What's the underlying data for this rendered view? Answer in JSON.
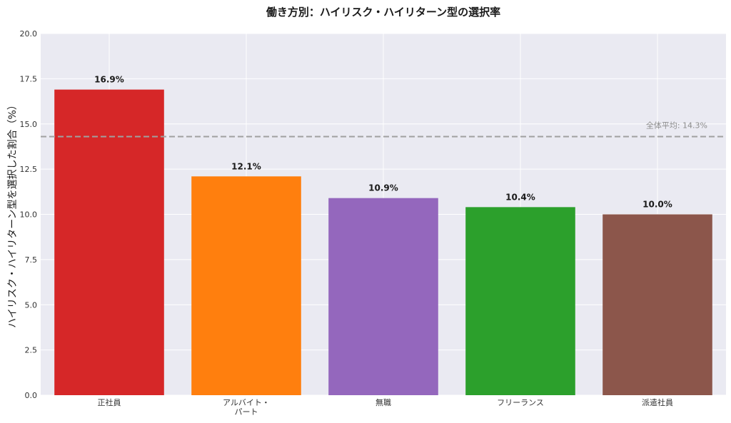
{
  "chart_data": {
    "type": "bar",
    "title": "働き方別：ハイリスク・ハイリターン型の選択率",
    "xlabel": "",
    "ylabel": "ハイリスク・ハイリターン型を選択した割合（%）",
    "categories": [
      "正社員",
      "アルバイト・\nパート",
      "無職",
      "フリーランス",
      "派遣社員"
    ],
    "values": [
      16.9,
      12.1,
      10.9,
      10.4,
      10.0
    ],
    "data_labels": [
      "16.9%",
      "12.1%",
      "10.9%",
      "10.4%",
      "10.0%"
    ],
    "colors": [
      "#d62728",
      "#ff7f0e",
      "#9467bd",
      "#2ca02c",
      "#8c564b"
    ],
    "ylim": [
      0,
      20
    ],
    "yticks": [
      "0.0",
      "2.5",
      "5.0",
      "7.5",
      "10.0",
      "12.5",
      "15.0",
      "17.5",
      "20.0"
    ],
    "grid": true,
    "reference_line": {
      "value": 14.3,
      "label": "全体平均: 14.3%",
      "color": "#a0a0a0"
    },
    "background": "#eaeaf2"
  }
}
